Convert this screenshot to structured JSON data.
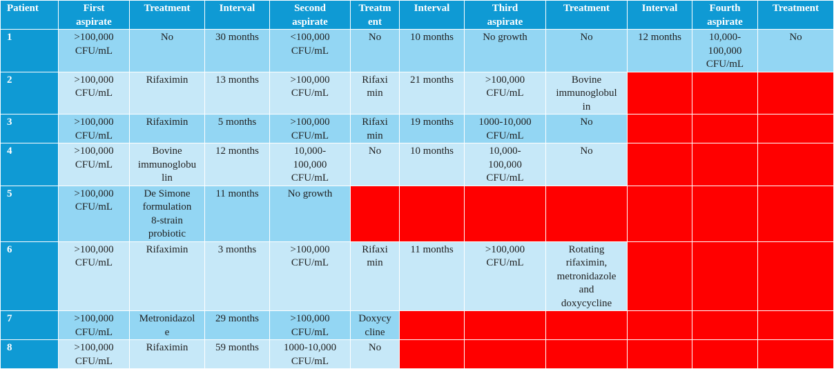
{
  "headers": [
    "Patient",
    "First aspirate",
    "Treatment",
    "Interval",
    "Second aspirate",
    "Treatment",
    "Interval",
    "Third aspirate",
    "Treatment",
    "Interval",
    "Fourth aspirate",
    "Treatment"
  ],
  "header_display": [
    "Patient",
    "First\naspirate",
    "Treatment",
    "Interval",
    "Second\naspirate",
    "Treatm\nent",
    "Interval",
    "Third\naspirate",
    "Treatment",
    "Interval",
    "Fourth\naspirate",
    "Treatment"
  ],
  "rows": [
    {
      "patient": "1",
      "cells": [
        ">100,000 CFU/mL",
        "No",
        "30 months",
        "<100,000 CFU/mL",
        "No",
        "10 months",
        "No growth",
        "No",
        "12 months",
        "10,000-100,000 CFU/mL",
        "No"
      ]
    },
    {
      "patient": "2",
      "cells": [
        ">100,000 CFU/mL",
        "Rifaximin",
        "13 months",
        ">100,000 CFU/mL",
        "Rifaximin",
        "21 months",
        ">100,000 CFU/mL",
        "Bovine immunoglobulin",
        null,
        null,
        null
      ]
    },
    {
      "patient": "3",
      "cells": [
        ">100,000 CFU/mL",
        "Rifaximin",
        "5 months",
        ">100,000 CFU/mL",
        "Rifaximin",
        "19 months",
        "1000-10,000 CFU/mL",
        "No",
        null,
        null,
        null
      ]
    },
    {
      "patient": "4",
      "cells": [
        ">100,000 CFU/mL",
        "Bovine immunoglobulin",
        "12 months",
        "10,000-100,000 CFU/mL",
        "No",
        "10 months",
        "10,000-100,000 CFU/mL",
        "No",
        null,
        null,
        null
      ]
    },
    {
      "patient": "5",
      "cells": [
        ">100,000 CFU/mL",
        "De Simone formulation 8-strain probiotic",
        "11 months",
        "No growth",
        null,
        null,
        null,
        null,
        null,
        null,
        null
      ]
    },
    {
      "patient": "6",
      "cells": [
        ">100,000 CFU/mL",
        "Rifaximin",
        "3 months",
        ">100,000 CFU/mL",
        "Rifaximin",
        "11 months",
        ">100,000 CFU/mL",
        "Rotating rifaximin, metronidazole and doxycycline",
        null,
        null,
        null
      ]
    },
    {
      "patient": "7",
      "cells": [
        ">100,000 CFU/mL",
        "Metronidazole",
        "29 months",
        ">100,000 CFU/mL",
        "Doxycycline",
        null,
        null,
        null,
        null,
        null,
        null
      ]
    },
    {
      "patient": "8",
      "cells": [
        ">100,000 CFU/mL",
        "Rifaximin",
        "59 months",
        "1000-10,000 CFU/mL",
        "No",
        null,
        null,
        null,
        null,
        null,
        null
      ]
    }
  ],
  "display": [
    [
      "1",
      ">100,000\nCFU/mL",
      "No",
      "30 months",
      "<100,000\nCFU/mL",
      "No",
      "10 months",
      "No growth",
      "No",
      "12 months",
      "10,000-\n100,000\nCFU/mL",
      "No"
    ],
    [
      "2",
      ">100,000\nCFU/mL",
      "Rifaximin",
      "13 months",
      ">100,000\nCFU/mL",
      "Rifaxi\nmin",
      "21 months",
      ">100,000\nCFU/mL",
      "Bovine\nimmunoglobul\nin",
      "",
      "",
      ""
    ],
    [
      "3",
      ">100,000\nCFU/mL",
      "Rifaximin",
      "5 months",
      ">100,000\nCFU/mL",
      "Rifaxi\nmin",
      "19 months",
      "1000-10,000\nCFU/mL",
      "No",
      "",
      "",
      ""
    ],
    [
      "4",
      ">100,000\nCFU/mL",
      "Bovine\nimmunoglobu\nlin",
      "12 months",
      "10,000-\n100,000\nCFU/mL",
      "No",
      "10 months",
      "10,000-\n100,000\nCFU/mL",
      "No",
      "",
      "",
      ""
    ],
    [
      "5",
      ">100,000\nCFU/mL",
      "De Simone\nformulation\n8-strain\nprobiotic",
      "11 months",
      "No growth",
      "",
      "",
      "",
      "",
      "",
      "",
      ""
    ],
    [
      "6",
      ">100,000\nCFU/mL",
      "Rifaximin",
      "3 months",
      ">100,000\nCFU/mL",
      "Rifaxi\nmin",
      "11 months",
      ">100,000\nCFU/mL",
      "Rotating\nrifaximin,\nmetronidazole\nand\ndoxycycline",
      "",
      "",
      ""
    ],
    [
      "7",
      ">100,000\nCFU/mL",
      "Metronidazol\ne",
      "29 months",
      ">100,000\nCFU/mL",
      "Doxycy\ncline",
      "",
      "",
      "",
      "",
      "",
      ""
    ],
    [
      "8",
      ">100,000\nCFU/mL",
      "Rifaximin",
      "59 months",
      "1000-10,000\nCFU/mL",
      "No",
      "",
      "",
      "",
      "",
      "",
      ""
    ]
  ],
  "colors": {
    "header_bg": "#0f9ad4",
    "row_odd_bg": "#93d6f3",
    "row_even_bg": "#c6e8f8",
    "not_applicable_bg": "#ff0000"
  }
}
